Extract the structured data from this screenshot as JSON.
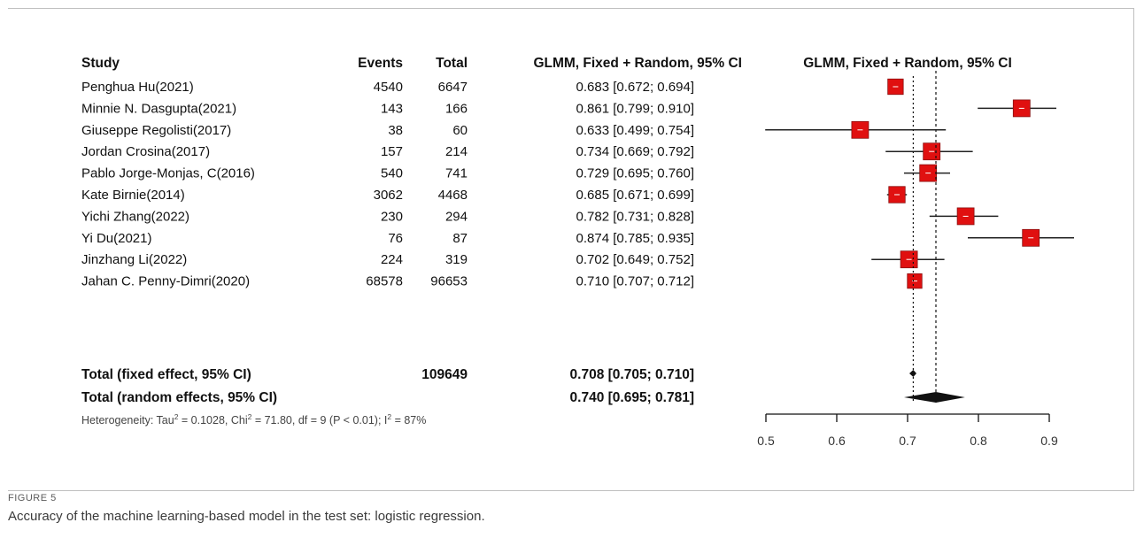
{
  "caption": {
    "label": "FIGURE 5",
    "text": "Accuracy of the machine learning-based model in the test set: logistic regression."
  },
  "chart_data": {
    "type": "forest",
    "headers": {
      "study": "Study",
      "events": "Events",
      "total": "Total",
      "ci": "GLMM, Fixed + Random, 95% CI",
      "plot": "GLMM, Fixed + Random, 95% CI"
    },
    "studies": [
      {
        "study": "Penghua Hu(2021)",
        "events": "4540",
        "total": "6647",
        "ci_text": "0.683 [0.672; 0.694]",
        "est": 0.683,
        "lo": 0.672,
        "hi": 0.694,
        "weight": 0.55
      },
      {
        "study": "Minnie N. Dasgupta(2021)",
        "events": "143",
        "total": "166",
        "ci_text": "0.861 [0.799; 0.910]",
        "est": 0.861,
        "lo": 0.799,
        "hi": 0.91,
        "weight": 0.7
      },
      {
        "study": "Giuseppe Regolisti(2017)",
        "events": "38",
        "total": "60",
        "ci_text": "0.633 [0.499; 0.754]",
        "est": 0.633,
        "lo": 0.499,
        "hi": 0.754,
        "weight": 0.7
      },
      {
        "study": "Jordan Crosina(2017)",
        "events": "157",
        "total": "214",
        "ci_text": "0.734 [0.669; 0.792]",
        "est": 0.734,
        "lo": 0.669,
        "hi": 0.792,
        "weight": 0.7
      },
      {
        "study": "Pablo Jorge-Monjas, C(2016)",
        "events": "540",
        "total": "741",
        "ci_text": "0.729 [0.695; 0.760]",
        "est": 0.729,
        "lo": 0.695,
        "hi": 0.76,
        "weight": 0.7
      },
      {
        "study": "Kate Birnie(2014)",
        "events": "3062",
        "total": "4468",
        "ci_text": "0.685 [0.671; 0.699]",
        "est": 0.685,
        "lo": 0.671,
        "hi": 0.699,
        "weight": 0.65
      },
      {
        "study": "Yichi Zhang(2022)",
        "events": "230",
        "total": "294",
        "ci_text": "0.782 [0.731; 0.828]",
        "est": 0.782,
        "lo": 0.731,
        "hi": 0.828,
        "weight": 0.7
      },
      {
        "study": "Yi Du(2021)",
        "events": "76",
        "total": "87",
        "ci_text": "0.874 [0.785; 0.935]",
        "est": 0.874,
        "lo": 0.785,
        "hi": 0.935,
        "weight": 0.7
      },
      {
        "study": "Jinzhang Li(2022)",
        "events": "224",
        "total": "319",
        "ci_text": "0.702 [0.649; 0.752]",
        "est": 0.702,
        "lo": 0.649,
        "hi": 0.752,
        "weight": 0.7
      },
      {
        "study": "Jahan C. Penny-Dimri(2020)",
        "events": "68578",
        "total": "96653",
        "ci_text": "0.710 [0.707; 0.712]",
        "est": 0.71,
        "lo": 0.707,
        "hi": 0.712,
        "weight": 0.45
      }
    ],
    "fixed": {
      "label": "Total (fixed effect, 95% CI)",
      "total": "109649",
      "ci_text": "0.708 [0.705; 0.710]",
      "est": 0.708,
      "lo": 0.705,
      "hi": 0.71
    },
    "random": {
      "label": "Total (random effects, 95% CI)",
      "ci_text": "0.740 [0.695; 0.781]",
      "est": 0.74,
      "lo": 0.695,
      "hi": 0.781
    },
    "heterogeneity": {
      "prefix": "Heterogeneity: Tau",
      "tau_val": " = 0.1028, Chi",
      "chi_val": " = 71.80, df = 9 (P < 0.01); I",
      "i_val": " = 87%",
      "sup": "2"
    },
    "xlim": [
      0.5,
      0.9
    ],
    "ticks": [
      0.5,
      0.6,
      0.7,
      0.8,
      0.9
    ],
    "tick_labels": [
      "0.5",
      "0.6",
      "0.7",
      "0.8",
      "0.9"
    ],
    "colors": {
      "box": "#e01010",
      "box_edge": "#8a1010",
      "diamond": "#111111",
      "line": "#222222"
    }
  }
}
